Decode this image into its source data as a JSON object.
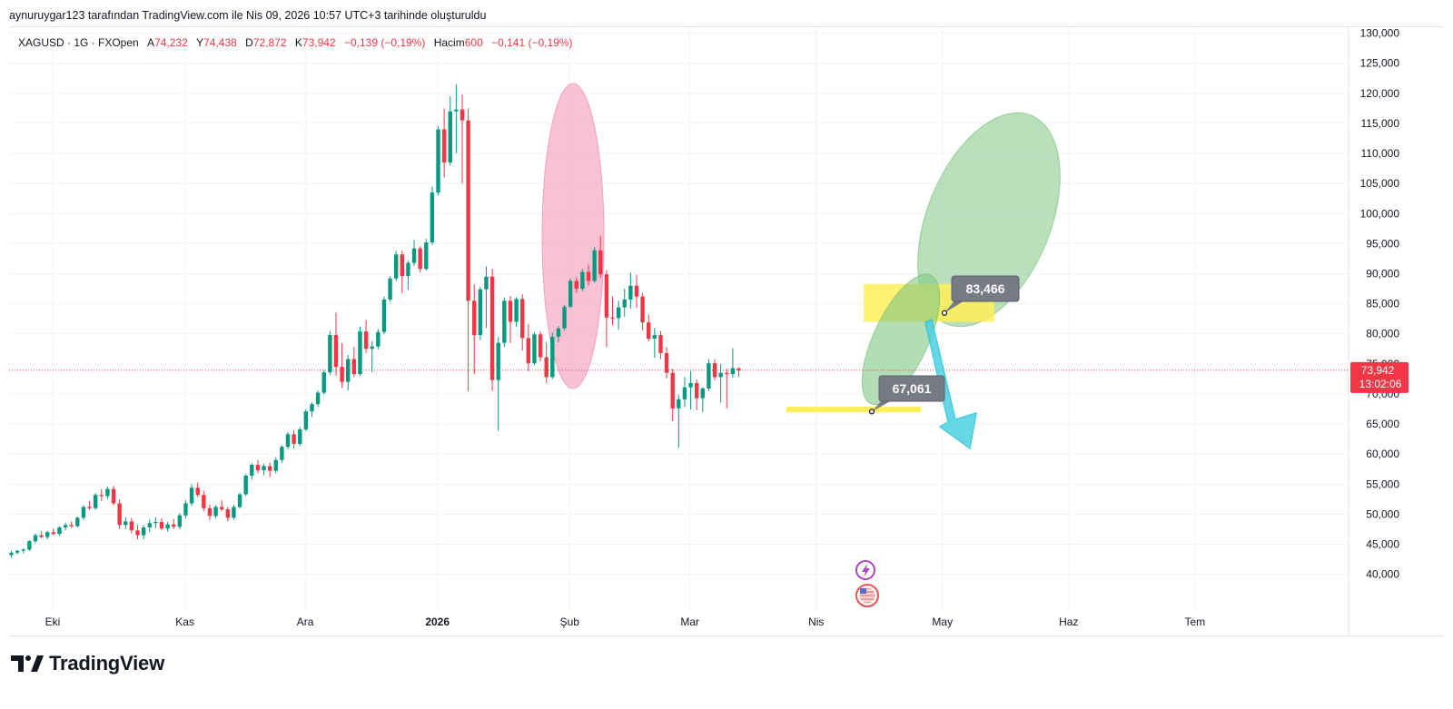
{
  "header": {
    "caption": "aynuruygar123 tarafından TradingView.com ile Nis 09, 2026 10:57 UTC+3 tarihinde oluşturuldu"
  },
  "legend": {
    "symbol": "XAGUSD · 1G · FXOpen",
    "open_label": "A",
    "open": "74,232",
    "high_label": "Y",
    "high": "74,438",
    "low_label": "D",
    "low": "72,872",
    "close_label": "K",
    "close": "73,942",
    "change": "−0,139 (−0,19%)",
    "volume_label": "Hacim",
    "volume": "600",
    "volume_change": "−0,141 (−0,19%)"
  },
  "price_badge": {
    "price": "73,942",
    "countdown": "13:02:06",
    "color": "#f23645"
  },
  "footer": {
    "brand": "TradingView"
  },
  "colors": {
    "up": "#089981",
    "down": "#f23645",
    "grid": "#f0f3fa"
  },
  "chart_data": {
    "type": "candlestick",
    "y_axis": {
      "range": [
        35000,
        135000
      ],
      "ticks": [
        40000,
        45000,
        50000,
        55000,
        60000,
        65000,
        70000,
        75000,
        80000,
        85000,
        90000,
        95000,
        100000,
        105000,
        110000,
        115000,
        120000,
        125000,
        130000
      ],
      "tick_labels": [
        "40,000",
        "45,000",
        "50,000",
        "55,000",
        "60,000",
        "65,000",
        "70,000",
        "75,000",
        "80,000",
        "85,000",
        "90,000",
        "95,000",
        "100,000",
        "105,000",
        "110,000",
        "115,000",
        "120,000",
        "125,000",
        "130,000"
      ]
    },
    "x_axis": {
      "labels": [
        "Eki",
        "Kas",
        "Ara",
        "2026",
        "Şub",
        "Mar",
        "Nis",
        "May",
        "Haz",
        "Tem"
      ],
      "label_bar_index": [
        0,
        22,
        42,
        64,
        86,
        106,
        127,
        148,
        169,
        190
      ],
      "bold_label": "2026"
    },
    "current_price": 73942,
    "candles_ohlc": [
      [
        43200,
        43900,
        42800,
        43600
      ],
      [
        43600,
        44100,
        43300,
        43900
      ],
      [
        43900,
        44400,
        43500,
        44100
      ],
      [
        44100,
        45700,
        43900,
        45500
      ],
      [
        45500,
        46800,
        45200,
        46500
      ],
      [
        46500,
        47200,
        46000,
        46200
      ],
      [
        46200,
        47200,
        45800,
        47000
      ],
      [
        47000,
        47600,
        46500,
        46700
      ],
      [
        46700,
        48000,
        46400,
        47800
      ],
      [
        47800,
        48600,
        47300,
        48200
      ],
      [
        48200,
        48800,
        47700,
        48000
      ],
      [
        48000,
        49600,
        47800,
        49400
      ],
      [
        49400,
        51500,
        49100,
        51200
      ],
      [
        51200,
        52200,
        50700,
        51000
      ],
      [
        51000,
        53500,
        50700,
        53200
      ],
      [
        53200,
        54200,
        52200,
        53000
      ],
      [
        53000,
        54600,
        52500,
        54200
      ],
      [
        54200,
        54700,
        51500,
        51800
      ],
      [
        51800,
        52500,
        47500,
        48200
      ],
      [
        48200,
        49500,
        47500,
        48800
      ],
      [
        48800,
        49400,
        46800,
        47300
      ],
      [
        47300,
        48200,
        45800,
        46500
      ],
      [
        46500,
        48200,
        45800,
        47800
      ],
      [
        47800,
        49100,
        47000,
        48500
      ],
      [
        48500,
        49500,
        47700,
        48700
      ],
      [
        48700,
        49300,
        47300,
        47600
      ],
      [
        47600,
        48700,
        47100,
        48300
      ],
      [
        48300,
        49200,
        47500,
        47900
      ],
      [
        47900,
        50200,
        47500,
        49800
      ],
      [
        49800,
        52300,
        49300,
        51800
      ],
      [
        51800,
        55000,
        51400,
        54400
      ],
      [
        54400,
        55300,
        52800,
        53200
      ],
      [
        53200,
        53900,
        50500,
        51000
      ],
      [
        51000,
        51600,
        49000,
        49700
      ],
      [
        49700,
        51500,
        49300,
        51200
      ],
      [
        51200,
        52300,
        50500,
        50800
      ],
      [
        50800,
        51200,
        48800,
        49400
      ],
      [
        49400,
        51500,
        49100,
        51200
      ],
      [
        51200,
        53600,
        50900,
        53300
      ],
      [
        53300,
        56700,
        53000,
        56400
      ],
      [
        56400,
        58500,
        55700,
        58200
      ],
      [
        58200,
        59000,
        56800,
        57300
      ],
      [
        57300,
        58400,
        56500,
        58000
      ],
      [
        58000,
        58600,
        56200,
        57200
      ],
      [
        57200,
        59500,
        56800,
        59000
      ],
      [
        59000,
        61500,
        58500,
        61200
      ],
      [
        61200,
        63700,
        60800,
        63300
      ],
      [
        63300,
        64000,
        60900,
        61700
      ],
      [
        61700,
        64500,
        61300,
        64100
      ],
      [
        64100,
        67500,
        63800,
        67100
      ],
      [
        67100,
        68600,
        66200,
        68300
      ],
      [
        68300,
        70600,
        67800,
        70200
      ],
      [
        70200,
        74000,
        69900,
        73600
      ],
      [
        73600,
        80500,
        73200,
        79800
      ],
      [
        79800,
        83500,
        73000,
        74500
      ],
      [
        74500,
        78500,
        71000,
        72000
      ],
      [
        72000,
        76500,
        70600,
        75800
      ],
      [
        75800,
        77800,
        72800,
        73300
      ],
      [
        73300,
        81200,
        73000,
        80400
      ],
      [
        80400,
        82300,
        76800,
        77500
      ],
      [
        77500,
        78800,
        73600,
        77900
      ],
      [
        77900,
        80800,
        77400,
        80300
      ],
      [
        80300,
        86200,
        79900,
        85700
      ],
      [
        85700,
        89600,
        85300,
        89200
      ],
      [
        89200,
        93800,
        88800,
        93200
      ],
      [
        93200,
        93800,
        86800,
        89600
      ],
      [
        89600,
        92200,
        87300,
        91800
      ],
      [
        91800,
        95600,
        91300,
        94200
      ],
      [
        94200,
        94600,
        90200,
        90800
      ],
      [
        90800,
        95800,
        90500,
        95200
      ],
      [
        95200,
        104500,
        94800,
        103500
      ],
      [
        103500,
        114500,
        103000,
        114000
      ],
      [
        114000,
        117500,
        106000,
        108500
      ],
      [
        108500,
        119500,
        108000,
        117000
      ],
      [
        117000,
        121500,
        110000,
        117300
      ],
      [
        117300,
        119800,
        105000,
        115500
      ],
      [
        115500,
        117500,
        70500,
        85500
      ],
      [
        85500,
        88200,
        73300,
        79800
      ],
      [
        79800,
        87800,
        79000,
        87400
      ],
      [
        87400,
        91200,
        81000,
        89500
      ],
      [
        89500,
        90800,
        70500,
        72300
      ],
      [
        72300,
        79500,
        63900,
        78500
      ],
      [
        78500,
        86000,
        77800,
        85500
      ],
      [
        85500,
        86300,
        78500,
        82000
      ],
      [
        82000,
        86100,
        81200,
        85800
      ],
      [
        85800,
        86600,
        77200,
        79300
      ],
      [
        79300,
        81600,
        73800,
        75100
      ],
      [
        75100,
        80300,
        74800,
        79900
      ],
      [
        79900,
        80400,
        75400,
        76100
      ],
      [
        76100,
        78600,
        71800,
        72800
      ],
      [
        72800,
        80200,
        72500,
        79500
      ],
      [
        79500,
        81300,
        78600,
        80900
      ],
      [
        80900,
        84800,
        80500,
        84500
      ],
      [
        84500,
        89200,
        84300,
        88800
      ],
      [
        88800,
        89400,
        86800,
        87500
      ],
      [
        87500,
        90800,
        87100,
        90300
      ],
      [
        90300,
        91500,
        88000,
        88800
      ],
      [
        88800,
        94500,
        88500,
        93900
      ],
      [
        93900,
        96300,
        89300,
        89900
      ],
      [
        89900,
        90600,
        77800,
        82700
      ],
      [
        82700,
        86200,
        81500,
        82600
      ],
      [
        82600,
        85500,
        80700,
        84400
      ],
      [
        84400,
        87500,
        82800,
        85700
      ],
      [
        85700,
        90200,
        84200,
        88000
      ],
      [
        88000,
        89800,
        84300,
        86200
      ],
      [
        86200,
        86800,
        80600,
        81900
      ],
      [
        81900,
        83200,
        78700,
        79200
      ],
      [
        79200,
        81000,
        76000,
        79800
      ],
      [
        79800,
        80500,
        75800,
        76800
      ],
      [
        76800,
        77800,
        72600,
        73500
      ],
      [
        73500,
        74200,
        65500,
        67600
      ],
      [
        67600,
        69900,
        61000,
        69100
      ],
      [
        69100,
        72800,
        67800,
        71100
      ],
      [
        71100,
        73800,
        67400,
        71800
      ],
      [
        71800,
        72400,
        67300,
        69300
      ],
      [
        69300,
        71100,
        67000,
        70900
      ],
      [
        70900,
        75800,
        70500,
        75100
      ],
      [
        75100,
        75800,
        72300,
        72800
      ],
      [
        72800,
        75000,
        68600,
        73500
      ],
      [
        73500,
        74200,
        67600,
        73300
      ],
      [
        73300,
        77600,
        72700,
        74300
      ],
      [
        74232,
        74438,
        72872,
        73942
      ]
    ],
    "annotations": [
      {
        "kind": "callout",
        "text": "83,466",
        "price": 83466
      },
      {
        "kind": "callout",
        "text": "67,061",
        "price": 67061
      },
      {
        "kind": "zone",
        "color": "#ffee58",
        "price_range": [
          82000,
          88300
        ]
      },
      {
        "kind": "line",
        "color": "#ffee58",
        "price": 67400
      },
      {
        "kind": "ellipse",
        "color": "#f48fb1"
      },
      {
        "kind": "ellipse",
        "color": "#81c784"
      },
      {
        "kind": "ellipse",
        "color": "#81c784"
      },
      {
        "kind": "arrow",
        "color": "#4dd0e1",
        "direction": "down"
      }
    ]
  }
}
